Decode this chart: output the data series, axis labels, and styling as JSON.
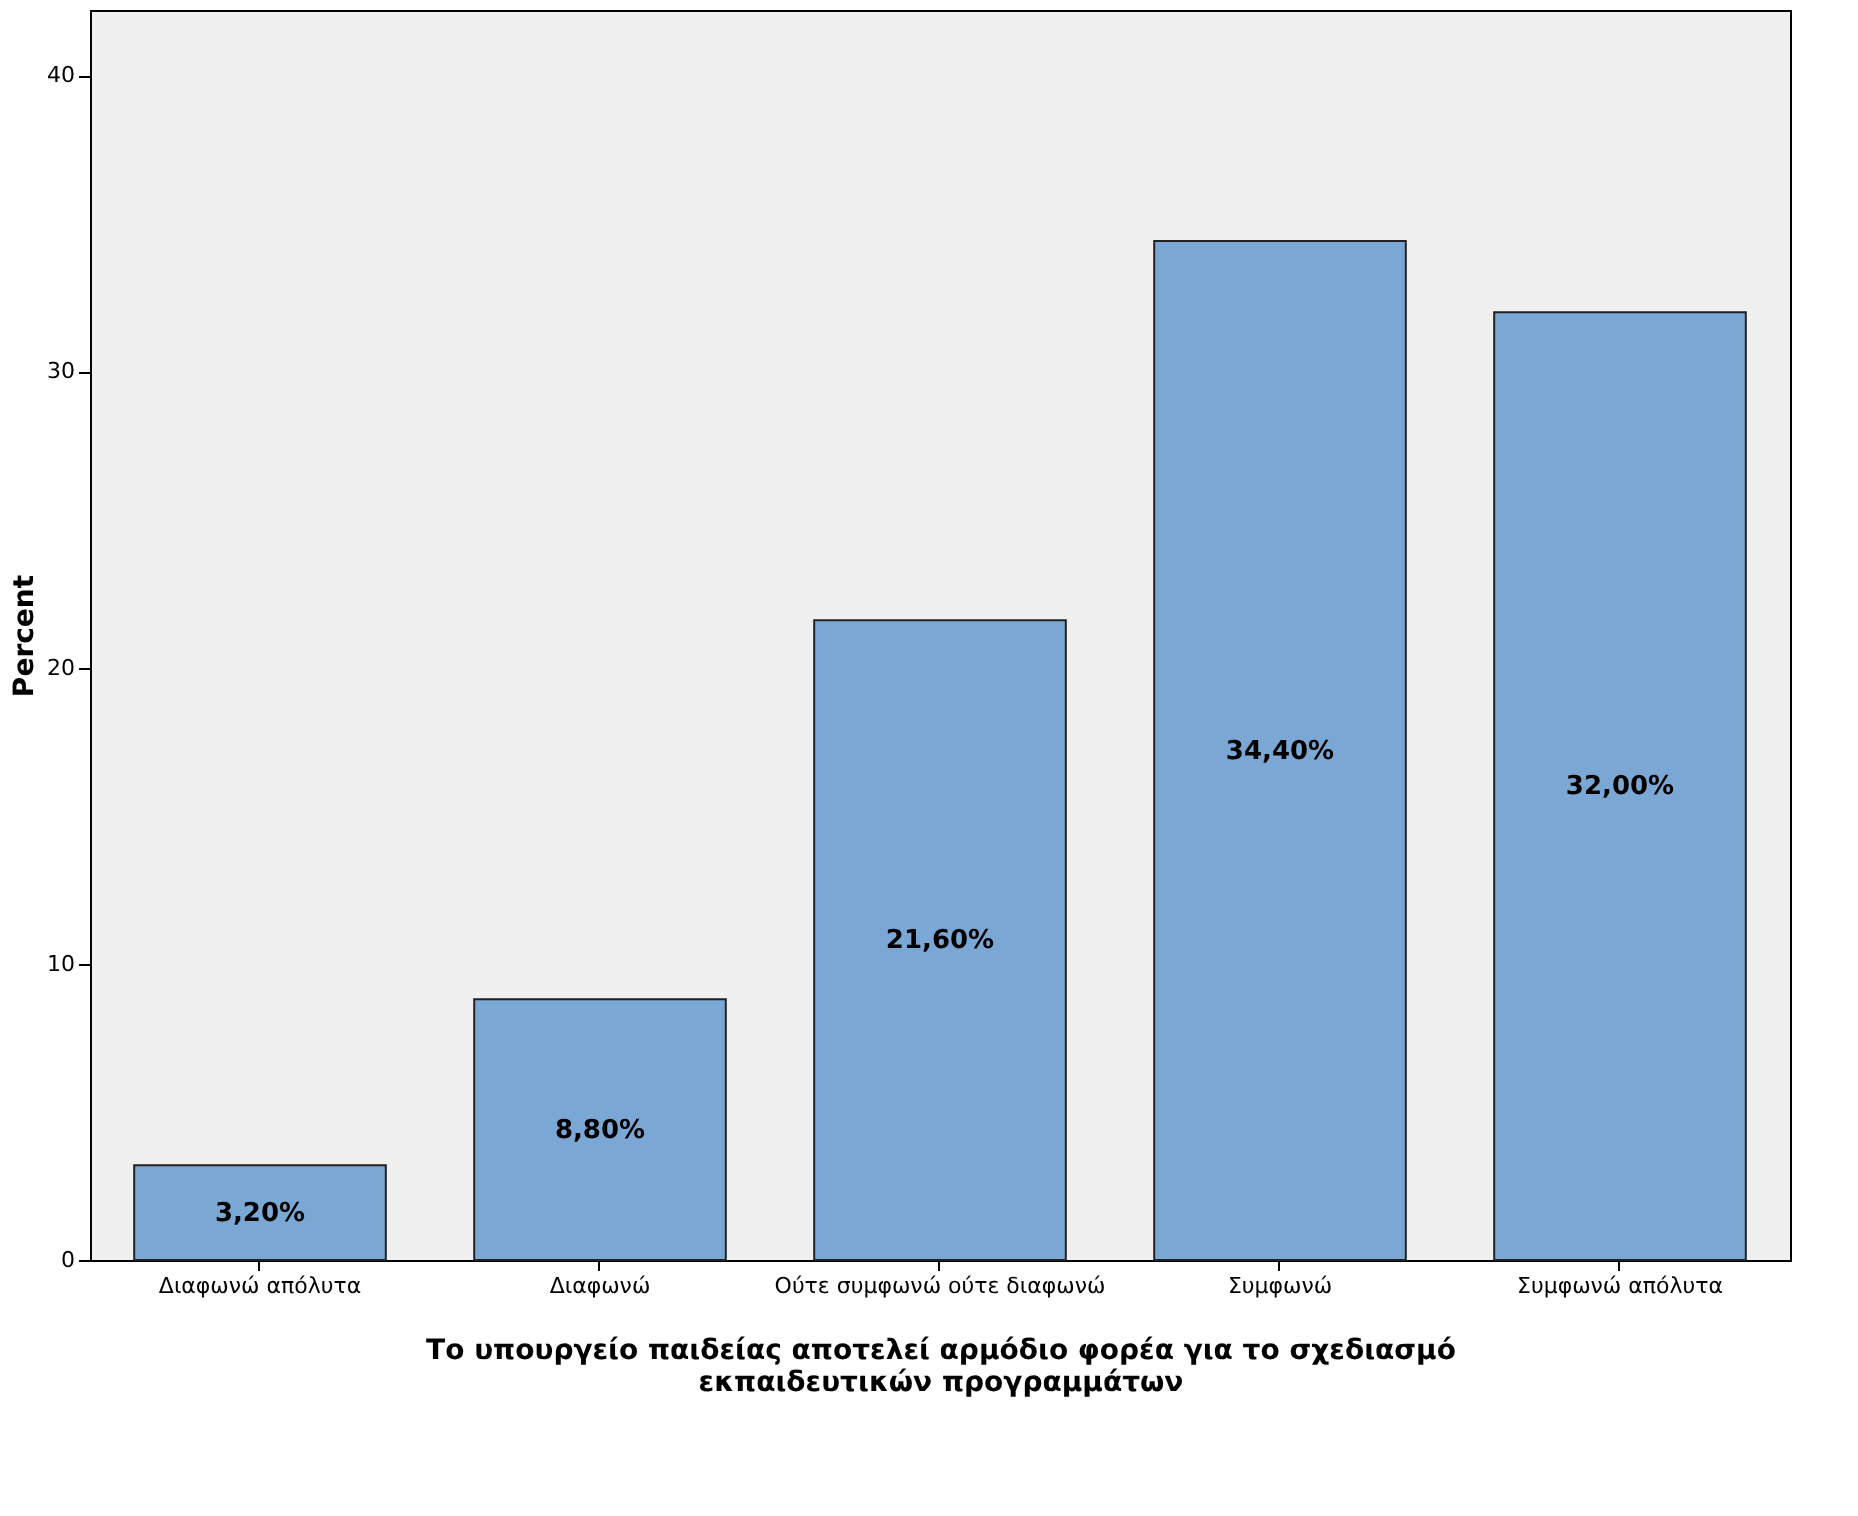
{
  "chart_data": {
    "type": "bar",
    "xlabel": "Το υπουργείο παιδείας αποτελεί αρμόδιο φορέα για το σχεδιασμό εκπαιδευτικών προγραμμάτων",
    "ylabel": "Percent",
    "categories": [
      "Διαφωνώ απόλυτα",
      "Διαφωνώ",
      "Ούτε συμφωνώ ούτε διαφωνώ",
      "Συμφωνώ",
      "Συμφωνώ απόλυτα"
    ],
    "values": [
      3.2,
      8.8,
      21.6,
      34.4,
      32.0
    ],
    "value_labels": [
      "3,20%",
      "8,80%",
      "21,60%",
      "34,40%",
      "32,00%"
    ],
    "color": "#7ba7d4",
    "ylim": [
      0,
      42.2
    ],
    "yticks": [
      0,
      10,
      20,
      30,
      40
    ],
    "grid": false
  }
}
